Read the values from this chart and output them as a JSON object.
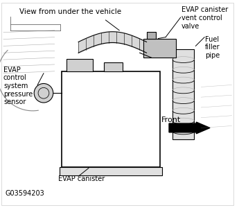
{
  "bg_color": "#ffffff",
  "labels": {
    "view_label": "View from under the vehicle",
    "evap_canister_vent": "EVAP canister\nvent control\nvalve",
    "fuel_filler": "Fuel\nfiller\npipe",
    "evap_control": "EVAP\ncontrol\nsystem\npressure\nsensor",
    "evap_canister": "EVAP canister",
    "front": "Front",
    "figure_id": "G03594203"
  },
  "line_color": "#000000",
  "text_color": "#000000",
  "font_size_small": 7,
  "font_size_label": 8
}
